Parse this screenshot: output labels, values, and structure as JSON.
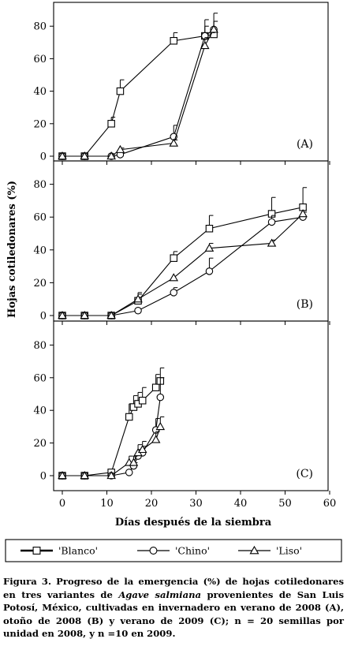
{
  "figure": {
    "ylabel": "Hojas cotiledonares (%)",
    "xlabel": "Días después de la siembra",
    "legend": [
      {
        "name": "'Blanco'",
        "marker": "square"
      },
      {
        "name": "'Chino'",
        "marker": "circle"
      },
      {
        "name": "'Liso'",
        "marker": "triangle"
      }
    ]
  },
  "chart_data": [
    {
      "type": "line",
      "panel_label": "(A)",
      "xlim": [
        -4,
        60
      ],
      "ylim": [
        0,
        90
      ],
      "yticks": [
        0,
        20,
        40,
        60,
        80
      ],
      "series": [
        {
          "name": "'Blanco'",
          "marker": "square",
          "x": [
            0,
            5,
            11,
            13,
            25,
            32,
            34
          ],
          "y": [
            0,
            0,
            20,
            40,
            71,
            74,
            75
          ],
          "err": [
            0,
            0,
            4,
            7,
            5,
            10,
            8
          ]
        },
        {
          "name": "'Chino'",
          "marker": "circle",
          "x": [
            0,
            5,
            11,
            13,
            25,
            32,
            34
          ],
          "y": [
            0,
            0,
            0,
            1,
            12,
            74,
            78
          ],
          "err": [
            0,
            0,
            0,
            0,
            7,
            6,
            5
          ]
        },
        {
          "name": "'Liso'",
          "marker": "triangle",
          "x": [
            0,
            5,
            11,
            13,
            25,
            32,
            34
          ],
          "y": [
            0,
            0,
            0,
            4,
            8,
            68,
            78
          ],
          "err": [
            0,
            0,
            0,
            1,
            2,
            5,
            10
          ]
        }
      ]
    },
    {
      "type": "line",
      "panel_label": "(B)",
      "xlim": [
        -4,
        60
      ],
      "ylim": [
        0,
        90
      ],
      "yticks": [
        0,
        20,
        40,
        60,
        80
      ],
      "series": [
        {
          "name": "'Blanco'",
          "marker": "square",
          "x": [
            0,
            5,
            11,
            17,
            25,
            33,
            47,
            54
          ],
          "y": [
            0,
            0,
            0,
            9,
            35,
            53,
            62,
            66
          ],
          "err": [
            0,
            0,
            0,
            4,
            4,
            8,
            10,
            12
          ]
        },
        {
          "name": "'Chino'",
          "marker": "circle",
          "x": [
            0,
            5,
            11,
            17,
            25,
            33,
            47,
            54
          ],
          "y": [
            0,
            0,
            0,
            3,
            14,
            27,
            57,
            60
          ],
          "err": [
            0,
            0,
            0,
            0,
            3,
            8,
            4,
            3
          ]
        },
        {
          "name": "'Liso'",
          "marker": "triangle",
          "x": [
            0,
            5,
            11,
            17,
            25,
            33,
            47,
            54
          ],
          "y": [
            0,
            0,
            0,
            10,
            23,
            41,
            44,
            62
          ],
          "err": [
            0,
            0,
            0,
            4,
            0,
            3,
            2,
            2
          ]
        }
      ]
    },
    {
      "type": "line",
      "panel_label": "(C)",
      "xlim": [
        -4,
        60
      ],
      "ylim": [
        0,
        90
      ],
      "yticks": [
        0,
        20,
        40,
        60,
        80
      ],
      "xticks": [
        0,
        10,
        20,
        30,
        40,
        50,
        60
      ],
      "series": [
        {
          "name": "'Blanco'",
          "marker": "square",
          "x": [
            0,
            5,
            11,
            15,
            16,
            17,
            18,
            21,
            22
          ],
          "y": [
            0,
            0,
            2,
            36,
            42,
            44,
            46,
            54,
            58
          ],
          "err": [
            0,
            0,
            0,
            8,
            7,
            7,
            8,
            8,
            8
          ]
        },
        {
          "name": "'Chino'",
          "marker": "circle",
          "x": [
            0,
            5,
            11,
            15,
            16,
            17,
            18,
            21,
            22
          ],
          "y": [
            0,
            0,
            0,
            2,
            6,
            12,
            14,
            28,
            48
          ],
          "err": [
            0,
            0,
            0,
            0,
            2,
            4,
            4,
            7,
            12
          ]
        },
        {
          "name": "'Liso'",
          "marker": "triangle",
          "x": [
            0,
            5,
            11,
            15,
            16,
            17,
            18,
            21,
            22
          ],
          "y": [
            0,
            0,
            0,
            8,
            8,
            14,
            16,
            22,
            30
          ],
          "err": [
            0,
            0,
            0,
            4,
            4,
            5,
            5,
            5,
            6
          ]
        }
      ]
    }
  ],
  "caption": {
    "part1": "Figura 3. Progreso de la emergencia (%) de hojas cotiledonares en tres variantes de ",
    "species": "Agave salmiana",
    "part2": " provenientes de San Luis Potosí, México, cultivadas en invernadero en verano de 2008 (A), otoño de 2008 (B) y verano de 2009 (C); n = 20 semillas por unidad en 2008, y n =10 en 2009."
  }
}
